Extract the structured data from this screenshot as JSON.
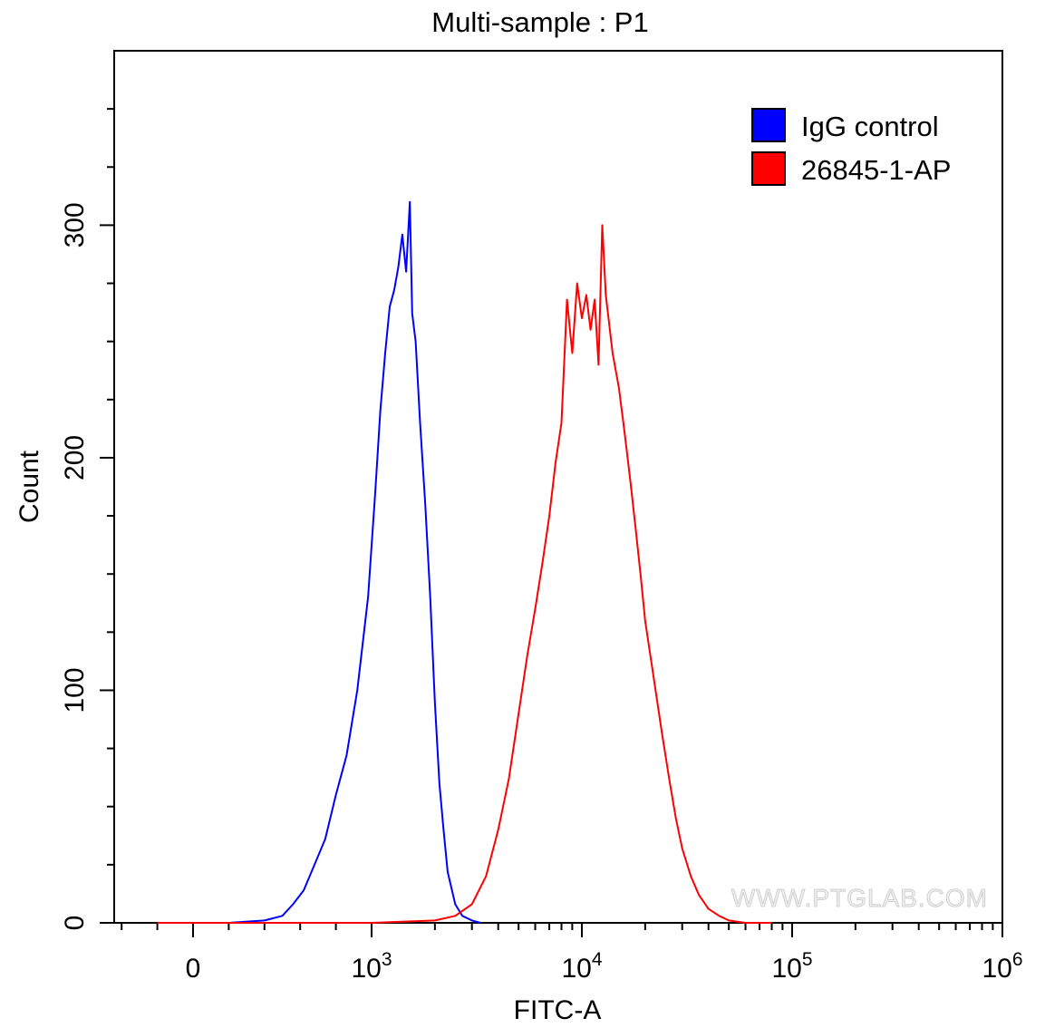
{
  "chart_data": {
    "type": "line",
    "title": "Multi-sample : P1",
    "xlabel": "FITC-A",
    "ylabel": "Count",
    "x_scale": "biexponential",
    "x_ticks": [
      {
        "base": "0",
        "exp": ""
      },
      {
        "base": "10",
        "exp": "3"
      },
      {
        "base": "10",
        "exp": "4"
      },
      {
        "base": "10",
        "exp": "5"
      },
      {
        "base": "10",
        "exp": "6"
      }
    ],
    "y_ticks": [
      "0",
      "100",
      "200",
      "300"
    ],
    "ylim": [
      0,
      375
    ],
    "legend_position": "top-right",
    "watermark": "WWW.PTGLAB.COM",
    "series": [
      {
        "name": "IgG control",
        "color": "#0000ff",
        "x": [
          -200,
          0,
          200,
          400,
          500,
          560,
          620,
          680,
          740,
          800,
          860,
          920,
          980,
          1040,
          1100,
          1160,
          1220,
          1280,
          1340,
          1400,
          1460,
          1520,
          1560,
          1620,
          1700,
          1800,
          1900,
          2000,
          2100,
          2200,
          2300,
          2500,
          2700,
          3000,
          3300
        ],
        "y": [
          0,
          0,
          0,
          1,
          3,
          8,
          14,
          25,
          36,
          55,
          72,
          100,
          140,
          185,
          220,
          245,
          265,
          272,
          282,
          296,
          280,
          310,
          262,
          250,
          215,
          180,
          140,
          95,
          60,
          40,
          22,
          8,
          3,
          1,
          0
        ]
      },
      {
        "name": "26845-1-AP",
        "color": "#ff0000",
        "x": [
          -200,
          1000,
          2000,
          2500,
          3000,
          3500,
          4000,
          4500,
          5000,
          5500,
          6000,
          6500,
          7000,
          7500,
          8000,
          8500,
          9000,
          9500,
          10000,
          10500,
          11000,
          11500,
          12000,
          12500,
          13000,
          14000,
          15000,
          16000,
          17000,
          18000,
          19000,
          20000,
          22000,
          24000,
          26000,
          28000,
          30000,
          33000,
          36000,
          40000,
          45000,
          50000,
          60000,
          70000,
          80000
        ],
        "y": [
          0,
          0,
          1,
          3,
          8,
          20,
          40,
          62,
          90,
          115,
          135,
          155,
          175,
          198,
          215,
          268,
          245,
          275,
          260,
          270,
          255,
          268,
          240,
          300,
          270,
          245,
          230,
          210,
          190,
          170,
          150,
          130,
          105,
          82,
          62,
          45,
          32,
          20,
          12,
          6,
          3,
          1,
          0,
          0,
          0
        ]
      }
    ]
  }
}
